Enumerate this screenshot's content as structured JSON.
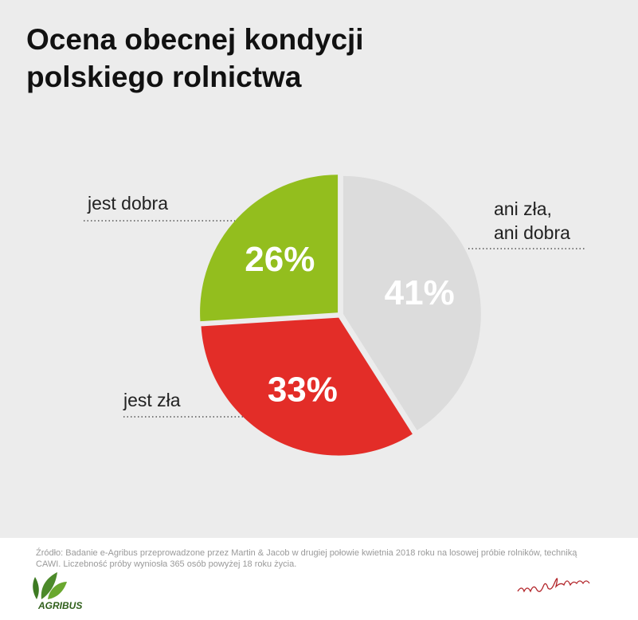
{
  "chart_data": {
    "type": "pie",
    "title": "Ocena obecnej kondycji\npolskiego rolnictwa",
    "categories": [
      "ani zła,\nani dobra",
      "jest zła",
      "jest dobra"
    ],
    "values": [
      41,
      33,
      26
    ],
    "value_labels": [
      "41%",
      "33%",
      "26%"
    ],
    "colors": [
      "#dcdcdc",
      "#e32d28",
      "#93be1e"
    ],
    "source": "Źródło: Badanie e-Agribus przeprowadzone przez Martin & Jacob w drugiej połowie kwietnia 2018 roku na losowej próbie rolników, techniką\nCAWI. Liczebność próby wyniosła 365 osób powyżej 18 roku życia.",
    "logo": "AGRIBUS"
  }
}
